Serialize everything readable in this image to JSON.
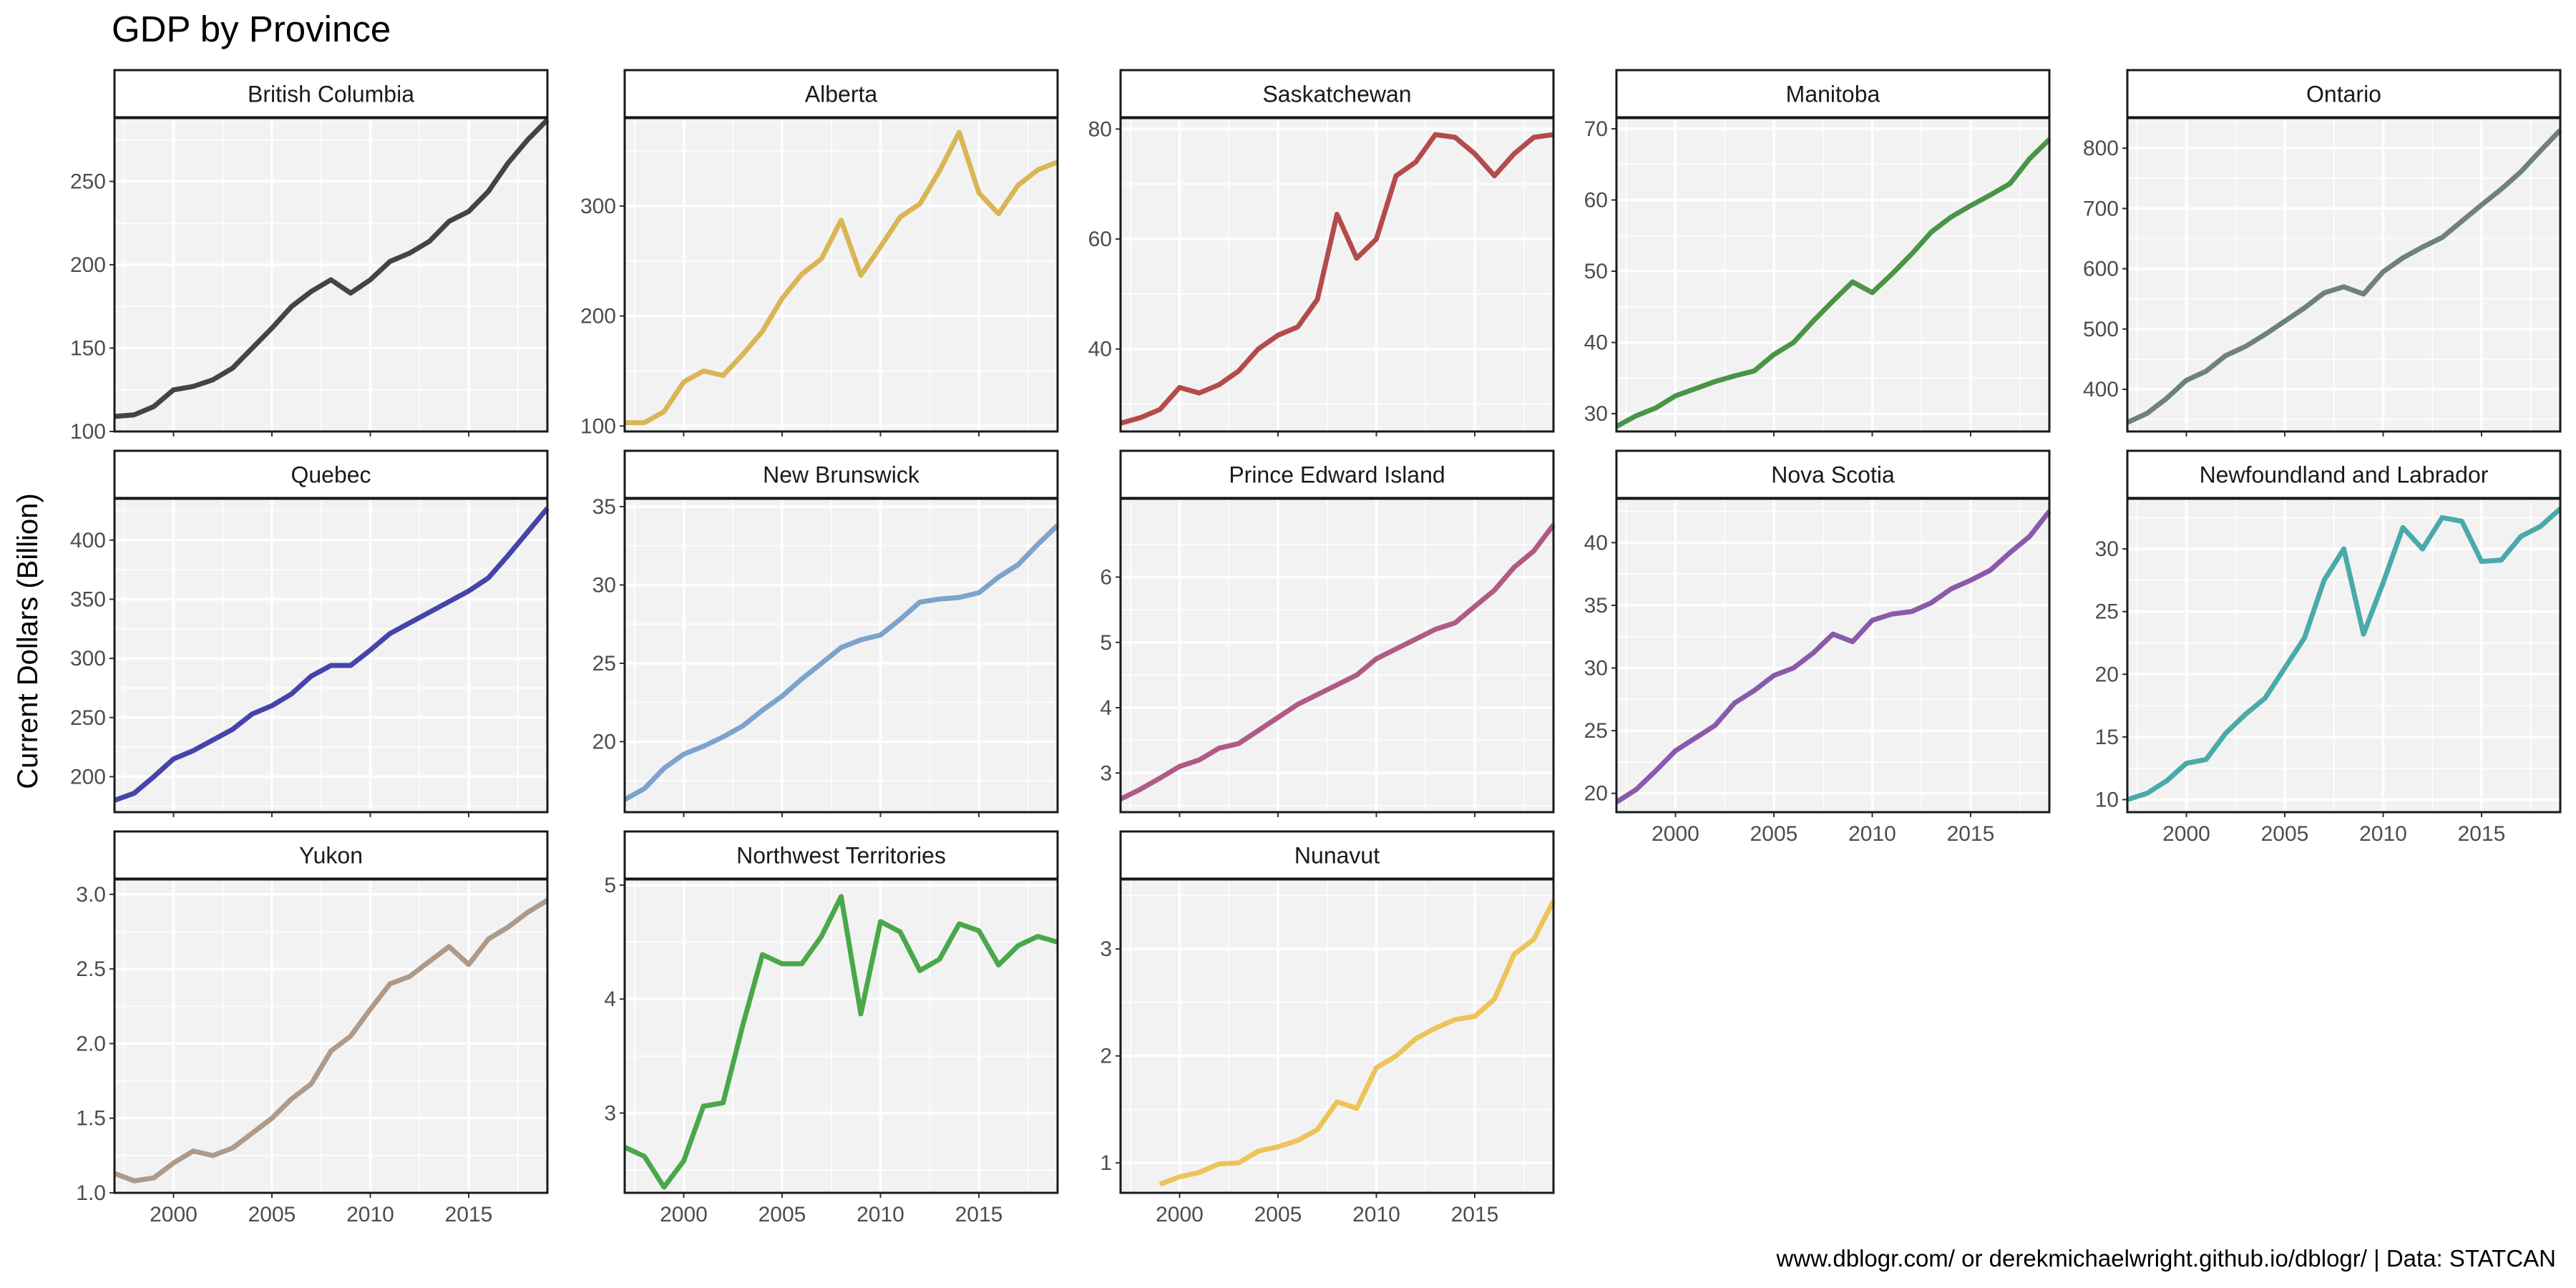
{
  "chart_data": {
    "type": "line",
    "title": "GDP by Province",
    "ylabel": "Current Dollars (Billion)",
    "xlabel": "",
    "caption": "www.dblogr.com/ or derekmichaelwright.github.io/dblogr/ | Data: STATCAN",
    "grid": true,
    "layout": "facet-wrap, 5 columns, free y-scales",
    "x_range": [
      1997,
      2019
    ],
    "x_ticks": [
      2000,
      2005,
      2010,
      2015
    ],
    "panels": [
      {
        "name": "British Columbia",
        "color": "#444444",
        "y_range": [
          100,
          288
        ],
        "y_ticks": [
          100,
          150,
          200,
          250
        ],
        "x": [
          1997,
          1998,
          1999,
          2000,
          2001,
          2002,
          2003,
          2004,
          2005,
          2006,
          2007,
          2008,
          2009,
          2010,
          2011,
          2012,
          2013,
          2014,
          2015,
          2016,
          2017,
          2018,
          2019
        ],
        "values": [
          109,
          110,
          115,
          125,
          127,
          131,
          138,
          150,
          162,
          175,
          184,
          191,
          183,
          191,
          202,
          207,
          214,
          226,
          232,
          244,
          261,
          275,
          287
        ]
      },
      {
        "name": "Alberta",
        "color": "#DAB557",
        "y_range": [
          95,
          380
        ],
        "y_ticks": [
          100,
          200,
          300
        ],
        "x": [
          1997,
          1998,
          1999,
          2000,
          2001,
          2002,
          2003,
          2004,
          2005,
          2006,
          2007,
          2008,
          2009,
          2010,
          2011,
          2012,
          2013,
          2014,
          2015,
          2016,
          2017,
          2018,
          2019
        ],
        "values": [
          103,
          103,
          113,
          140,
          150,
          146,
          165,
          186,
          216,
          238,
          252,
          287,
          237,
          263,
          290,
          302,
          332,
          367,
          312,
          293,
          319,
          333,
          340
        ]
      },
      {
        "name": "Saskatchewan",
        "color": "#B44B4B",
        "y_range": [
          25,
          82
        ],
        "y_ticks": [
          40,
          60,
          80
        ],
        "x": [
          1997,
          1998,
          1999,
          2000,
          2001,
          2002,
          2003,
          2004,
          2005,
          2006,
          2007,
          2008,
          2009,
          2010,
          2011,
          2012,
          2013,
          2014,
          2015,
          2016,
          2017,
          2018,
          2019
        ],
        "values": [
          26.5,
          27.5,
          29,
          33,
          32,
          33.5,
          36,
          40,
          42.5,
          44,
          49,
          64.5,
          56.5,
          60,
          71.5,
          74,
          79,
          78.5,
          75.5,
          71.5,
          75.5,
          78.5,
          79
        ]
      },
      {
        "name": "Manitoba",
        "color": "#4A9446",
        "y_range": [
          27.5,
          71.5
        ],
        "y_ticks": [
          30,
          40,
          50,
          60,
          70
        ],
        "x": [
          1997,
          1998,
          1999,
          2000,
          2001,
          2002,
          2003,
          2004,
          2005,
          2006,
          2007,
          2008,
          2009,
          2010,
          2011,
          2012,
          2013,
          2014,
          2015,
          2016,
          2017,
          2018,
          2019
        ],
        "values": [
          28.2,
          29.7,
          30.8,
          32.5,
          33.5,
          34.5,
          35.3,
          36,
          38.3,
          40,
          43,
          45.8,
          48.5,
          47,
          49.6,
          52.4,
          55.5,
          57.6,
          59.2,
          60.7,
          62.3,
          65.8,
          68.5
        ]
      },
      {
        "name": "Ontario",
        "color": "#6E8080",
        "y_range": [
          330,
          850
        ],
        "y_ticks": [
          400,
          500,
          600,
          700,
          800
        ],
        "x": [
          1997,
          1998,
          1999,
          2000,
          2001,
          2002,
          2003,
          2004,
          2005,
          2006,
          2007,
          2008,
          2009,
          2010,
          2011,
          2012,
          2013,
          2014,
          2015,
          2016,
          2017,
          2018,
          2019
        ],
        "values": [
          345,
          360,
          385,
          415,
          430,
          456,
          471,
          491,
          513,
          535,
          560,
          570,
          558,
          595,
          618,
          636,
          652,
          679,
          706,
          732,
          761,
          796,
          830
        ]
      },
      {
        "name": "Quebec",
        "color": "#4444AA",
        "y_range": [
          170,
          435
        ],
        "y_ticks": [
          200,
          250,
          300,
          350,
          400
        ],
        "x": [
          1997,
          1998,
          1999,
          2000,
          2001,
          2002,
          2003,
          2004,
          2005,
          2006,
          2007,
          2008,
          2009,
          2010,
          2011,
          2012,
          2013,
          2014,
          2015,
          2016,
          2017,
          2018,
          2019
        ],
        "values": [
          180,
          186,
          200,
          215,
          222,
          231,
          240,
          253,
          260,
          270,
          285,
          294,
          294,
          307,
          321,
          330,
          339,
          348,
          357,
          368,
          387,
          407,
          427
        ]
      },
      {
        "name": "New Brunswick",
        "color": "#7BA3CC",
        "y_range": [
          15.5,
          35.5
        ],
        "y_ticks": [
          20,
          25,
          30,
          35
        ],
        "x": [
          1997,
          1998,
          1999,
          2000,
          2001,
          2002,
          2003,
          2004,
          2005,
          2006,
          2007,
          2008,
          2009,
          2010,
          2011,
          2012,
          2013,
          2014,
          2015,
          2016,
          2017,
          2018,
          2019
        ],
        "values": [
          16.3,
          17,
          18.3,
          19.2,
          19.7,
          20.3,
          21,
          22,
          22.9,
          24,
          25,
          26,
          26.5,
          26.8,
          27.8,
          28.9,
          29.1,
          29.2,
          29.5,
          30.5,
          31.3,
          32.6,
          33.8
        ]
      },
      {
        "name": "Prince Edward Island",
        "color": "#B05A85",
        "y_range": [
          2.4,
          7.2
        ],
        "y_ticks": [
          3,
          4,
          5,
          6
        ],
        "x": [
          1997,
          1998,
          1999,
          2000,
          2001,
          2002,
          2003,
          2004,
          2005,
          2006,
          2007,
          2008,
          2009,
          2010,
          2011,
          2012,
          2013,
          2014,
          2015,
          2016,
          2017,
          2018,
          2019
        ],
        "values": [
          2.6,
          2.75,
          2.92,
          3.1,
          3.2,
          3.38,
          3.45,
          3.65,
          3.85,
          4.05,
          4.2,
          4.35,
          4.5,
          4.75,
          4.9,
          5.05,
          5.2,
          5.3,
          5.55,
          5.8,
          6.15,
          6.4,
          6.8
        ]
      },
      {
        "name": "Nova Scotia",
        "color": "#8A5AAA",
        "y_range": [
          18.5,
          43.5
        ],
        "y_ticks": [
          20,
          25,
          30,
          35,
          40
        ],
        "x": [
          1997,
          1998,
          1999,
          2000,
          2001,
          2002,
          2003,
          2004,
          2005,
          2006,
          2007,
          2008,
          2009,
          2010,
          2011,
          2012,
          2013,
          2014,
          2015,
          2016,
          2017,
          2018,
          2019
        ],
        "values": [
          19.3,
          20.3,
          21.8,
          23.4,
          24.4,
          25.4,
          27.2,
          28.2,
          29.4,
          30,
          31.2,
          32.7,
          32.1,
          33.8,
          34.3,
          34.5,
          35.2,
          36.3,
          37,
          37.8,
          39.2,
          40.5,
          42.5
        ]
      },
      {
        "name": "Newfoundland and Labrador",
        "color": "#4AAAAA",
        "y_range": [
          9,
          34
        ],
        "y_ticks": [
          10,
          15,
          20,
          25,
          30
        ],
        "x": [
          1997,
          1998,
          1999,
          2000,
          2001,
          2002,
          2003,
          2004,
          2005,
          2006,
          2007,
          2008,
          2009,
          2010,
          2011,
          2012,
          2013,
          2014,
          2015,
          2016,
          2017,
          2018,
          2019
        ],
        "values": [
          10,
          10.5,
          11.5,
          12.9,
          13.2,
          15.3,
          16.8,
          18.1,
          20.5,
          22.9,
          27.5,
          30,
          23.2,
          27.3,
          31.7,
          30,
          32.5,
          32.2,
          29,
          29.1,
          31,
          31.8,
          33.2
        ]
      },
      {
        "name": "Yukon",
        "color": "#AD9A8A",
        "y_range": [
          1.0,
          3.1
        ],
        "y_ticks": [
          1.0,
          1.5,
          2.0,
          2.5,
          3.0
        ],
        "x": [
          1997,
          1998,
          1999,
          2000,
          2001,
          2002,
          2003,
          2004,
          2005,
          2006,
          2007,
          2008,
          2009,
          2010,
          2011,
          2012,
          2013,
          2014,
          2015,
          2016,
          2017,
          2018,
          2019
        ],
        "values": [
          1.13,
          1.08,
          1.1,
          1.2,
          1.28,
          1.25,
          1.3,
          1.4,
          1.5,
          1.63,
          1.73,
          1.95,
          2.05,
          2.23,
          2.4,
          2.45,
          2.55,
          2.65,
          2.53,
          2.7,
          2.78,
          2.88,
          2.96
        ]
      },
      {
        "name": "Northwest Territories",
        "color": "#4AA84A",
        "y_range": [
          2.3,
          5.05
        ],
        "y_ticks": [
          3,
          4,
          5
        ],
        "x": [
          1997,
          1998,
          1999,
          2000,
          2001,
          2002,
          2003,
          2004,
          2005,
          2006,
          2007,
          2008,
          2009,
          2010,
          2011,
          2012,
          2013,
          2014,
          2015,
          2016,
          2017,
          2018,
          2019
        ],
        "values": [
          2.7,
          2.62,
          2.35,
          2.58,
          3.06,
          3.09,
          3.77,
          4.39,
          4.31,
          4.31,
          4.55,
          4.9,
          3.87,
          4.68,
          4.59,
          4.25,
          4.35,
          4.66,
          4.6,
          4.3,
          4.47,
          4.55,
          4.5
        ]
      },
      {
        "name": "Nunavut",
        "color": "#EDC35A",
        "y_range": [
          0.72,
          3.65
        ],
        "y_ticks": [
          1,
          2,
          3
        ],
        "x": [
          1999,
          2000,
          2001,
          2002,
          2003,
          2004,
          2005,
          2006,
          2007,
          2008,
          2009,
          2010,
          2011,
          2012,
          2013,
          2014,
          2015,
          2016,
          2017,
          2018,
          2019
        ],
        "values": [
          0.8,
          0.87,
          0.91,
          0.99,
          1.0,
          1.11,
          1.15,
          1.21,
          1.31,
          1.57,
          1.51,
          1.89,
          2.0,
          2.16,
          2.26,
          2.34,
          2.37,
          2.53,
          2.95,
          3.09,
          3.45
        ]
      }
    ]
  }
}
